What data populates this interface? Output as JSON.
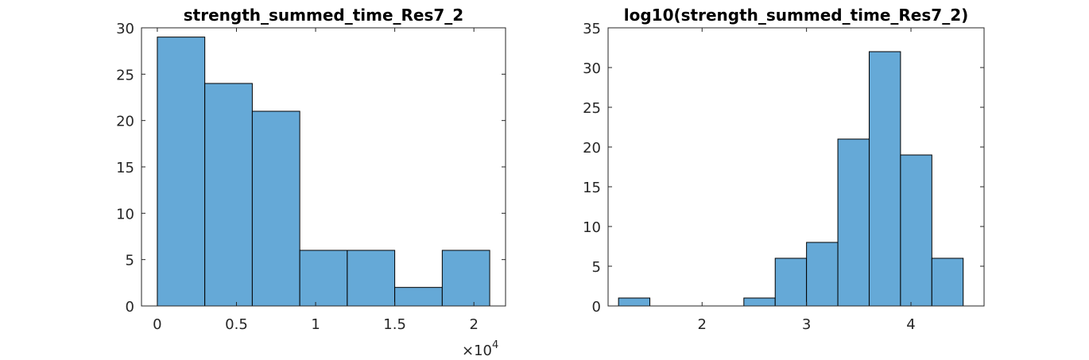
{
  "colors": {
    "bar_fill": "#65a9d7",
    "bar_edge": "#000000",
    "axis": "#262626"
  },
  "chart_data": [
    {
      "type": "bar",
      "subtype": "histogram",
      "title": "strength_summed_time_Res7_2",
      "xlabel": "",
      "ylabel": "",
      "bin_edges": [
        0,
        3000,
        6000,
        9000,
        12000,
        15000,
        18000,
        21000
      ],
      "values": [
        29,
        24,
        21,
        6,
        6,
        2,
        6
      ],
      "xlim": [
        -1000,
        22000
      ],
      "ylim": [
        0,
        30
      ],
      "xticks": [
        0,
        5000,
        10000,
        15000,
        20000
      ],
      "xtick_labels": [
        "0",
        "0.5",
        "1",
        "1.5",
        "2"
      ],
      "yticks": [
        0,
        5,
        10,
        15,
        20,
        25,
        30
      ],
      "ytick_labels": [
        "0",
        "5",
        "10",
        "15",
        "20",
        "25",
        "30"
      ],
      "x_exponent": {
        "base": "×10",
        "power": "4"
      },
      "grid": false,
      "legend": "none"
    },
    {
      "type": "bar",
      "subtype": "histogram",
      "title": "log10(strength_summed_time_Res7_2)",
      "xlabel": "",
      "ylabel": "",
      "bin_edges": [
        1.2,
        1.5,
        1.8,
        2.1,
        2.4,
        2.7,
        3.0,
        3.3,
        3.6,
        3.9,
        4.2,
        4.5
      ],
      "values": [
        1,
        0,
        0,
        0,
        1,
        6,
        8,
        21,
        32,
        19,
        6
      ],
      "xlim": [
        1.1,
        4.7
      ],
      "ylim": [
        0,
        35
      ],
      "xticks": [
        2,
        3,
        4
      ],
      "xtick_labels": [
        "2",
        "3",
        "4"
      ],
      "yticks": [
        0,
        5,
        10,
        15,
        20,
        25,
        30,
        35
      ],
      "ytick_labels": [
        "0",
        "5",
        "10",
        "15",
        "20",
        "25",
        "30",
        "35"
      ],
      "grid": false,
      "legend": "none"
    }
  ]
}
